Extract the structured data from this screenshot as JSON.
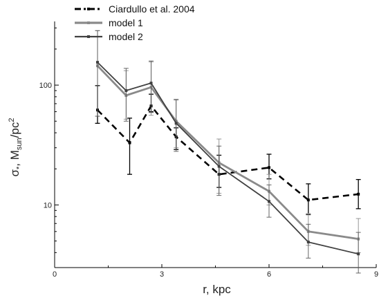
{
  "chart_data": {
    "type": "line",
    "xlabel": "r, kpc",
    "ylabel": {
      "base": "σ",
      "sub1": "*",
      "mid": ", M",
      "sub2": "sun",
      "tail": "/pc",
      "sup": "2"
    },
    "x_scale": "linear",
    "y_scale": "log",
    "xlim": [
      0,
      9
    ],
    "ylim": [
      3.0,
      340
    ],
    "x_ticks": [
      0,
      3,
      6,
      9
    ],
    "x_tick_labels": [
      "0",
      "3",
      "6",
      "9"
    ],
    "y_ticks": [
      10,
      100
    ],
    "y_tick_labels": [
      "10",
      "100"
    ],
    "grid": false,
    "legend_position": "top",
    "series": [
      {
        "name": "Ciardullo et al. 2004",
        "color": "#000000",
        "style": "dashed",
        "x": [
          1.2,
          2.1,
          2.7,
          3.4,
          4.6,
          6.0,
          7.1,
          8.5
        ],
        "y": [
          62,
          33,
          67,
          37,
          18,
          20.5,
          11,
          12.3
        ],
        "err_low": [
          14,
          15,
          7,
          8,
          4,
          4,
          2.7,
          3
        ],
        "err_high": [
          37,
          20,
          17,
          7,
          8,
          6,
          4,
          4
        ]
      },
      {
        "name": "model 1",
        "color": "#8a8a8a",
        "style": "solid",
        "x": [
          1.2,
          2.0,
          2.7,
          3.4,
          4.6,
          6.0,
          7.1,
          8.5
        ],
        "y": [
          145,
          82,
          96,
          50,
          22.5,
          13,
          6,
          5.2
        ],
        "err_low": [
          90,
          30,
          40,
          20,
          10,
          3,
          1.4,
          1.2
        ],
        "err_high": [
          140,
          50,
          60,
          25,
          13,
          5,
          2.5,
          2.5
        ]
      },
      {
        "name": "model 2",
        "color": "#404040",
        "style": "solid",
        "x": [
          1.2,
          2.0,
          2.7,
          3.4,
          4.6,
          6.0,
          7.1,
          8.5
        ],
        "y": [
          155,
          90,
          104,
          48,
          21,
          10.7,
          4.9,
          3.9
        ],
        "err_low": [
          100,
          40,
          45,
          20,
          9,
          2.8,
          1.3,
          1.2
        ],
        "err_high": [
          130,
          48,
          55,
          28,
          10,
          4,
          2,
          2
        ]
      }
    ]
  }
}
